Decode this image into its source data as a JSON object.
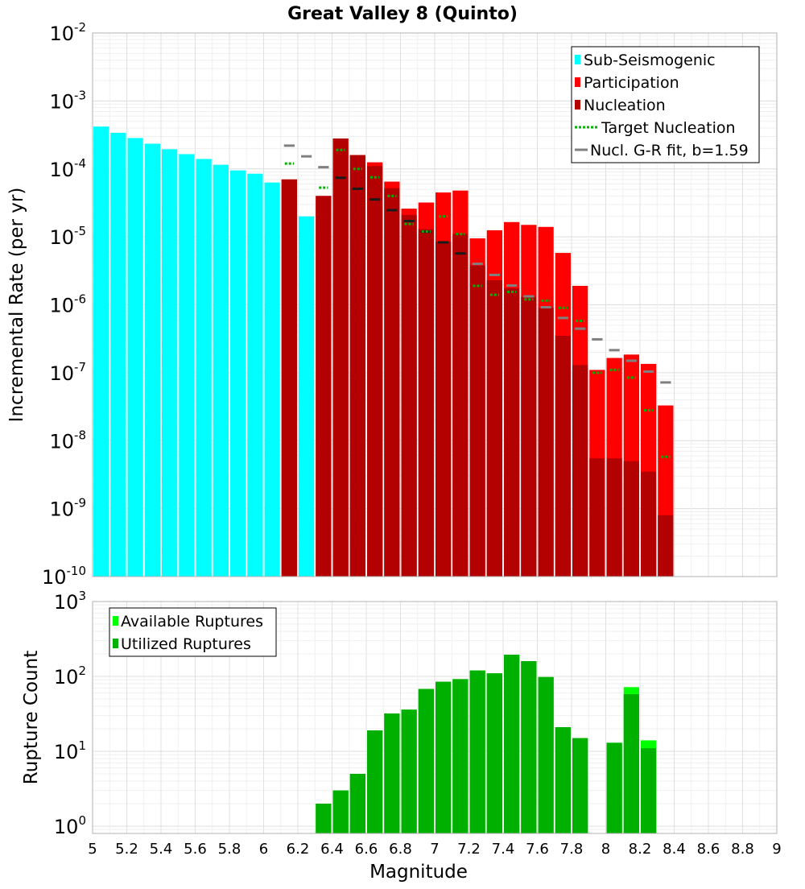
{
  "title": "Great Valley 8 (Quinto)",
  "xlabel": "Magnitude",
  "x_ticks": [
    "5",
    "5.2",
    "5.4",
    "5.6",
    "5.8",
    "6",
    "6.2",
    "6.4",
    "6.6",
    "6.8",
    "7",
    "7.2",
    "7.4",
    "7.6",
    "7.8",
    "8",
    "8.2",
    "8.4",
    "8.6",
    "8.8",
    "9"
  ],
  "colors": {
    "sub_seismogenic": "#00ffff",
    "participation": "#ff0000",
    "nucleation": "#b30000",
    "target_nucleation": "#00b300",
    "gr_fit": "#808080",
    "gr_fit_overlap": "#1a1a1a",
    "available_ruptures": "#00ff00",
    "utilized_ruptures": "#00b000"
  },
  "chart_data": [
    {
      "type": "bar",
      "title": "Great Valley 8 (Quinto)",
      "ylabel": "Incremental Rate (per yr)",
      "xlabel": "",
      "xlim": [
        5,
        9
      ],
      "ylim": [
        1e-10,
        0.01
      ],
      "yscale": "log",
      "bin_width": 0.1,
      "y_ticks": [
        {
          "base": "10",
          "exp": "-10"
        },
        {
          "base": "10",
          "exp": "-9"
        },
        {
          "base": "10",
          "exp": "-8"
        },
        {
          "base": "10",
          "exp": "-7"
        },
        {
          "base": "10",
          "exp": "-6"
        },
        {
          "base": "10",
          "exp": "-5"
        },
        {
          "base": "10",
          "exp": "-4"
        },
        {
          "base": "10",
          "exp": "-3"
        },
        {
          "base": "10",
          "exp": "-2"
        }
      ],
      "grid": true,
      "legend_position": "top-right",
      "legend": [
        "Sub-Seismogenic",
        "Participation",
        "Nucleation",
        "Target Nucleation",
        "Nucl. G-R fit, b=1.59"
      ],
      "sub_seismogenic": {
        "name": "Sub-Seismogenic",
        "x": [
          5.05,
          5.15,
          5.25,
          5.35,
          5.45,
          5.55,
          5.65,
          5.75,
          5.85,
          5.95,
          6.05,
          6.25
        ],
        "values": [
          0.00042,
          0.00034,
          0.000285,
          0.000235,
          0.000195,
          0.000165,
          0.00014,
          0.000115,
          9.5e-05,
          8.5e-05,
          6.3e-05,
          2e-05
        ]
      },
      "participation": {
        "name": "Participation",
        "x": [
          6.15,
          6.35,
          6.45,
          6.55,
          6.65,
          6.75,
          6.85,
          6.95,
          7.05,
          7.15,
          7.25,
          7.35,
          7.45,
          7.55,
          7.65,
          7.75,
          7.85,
          7.95,
          8.05,
          8.15,
          8.25,
          8.35
        ],
        "values": [
          7e-05,
          4e-05,
          0.00028,
          0.00016,
          0.000125,
          6.5e-05,
          2.6e-05,
          3.2e-05,
          4.5e-05,
          4.8e-05,
          9.5e-06,
          1.25e-05,
          1.65e-05,
          1.5e-05,
          1.4e-05,
          5.8e-06,
          1.9e-06,
          1.1e-07,
          1.65e-07,
          1.85e-07,
          1.35e-07,
          3.3e-08
        ]
      },
      "nucleation": {
        "name": "Nucleation",
        "x": [
          6.15,
          6.35,
          6.45,
          6.55,
          6.65,
          6.75,
          6.85,
          6.95,
          7.05,
          7.15,
          7.25,
          7.35,
          7.45,
          7.55,
          7.65,
          7.75,
          7.85,
          7.95,
          8.05,
          8.15,
          8.25,
          8.35
        ],
        "values": [
          7e-05,
          4e-05,
          0.00028,
          0.00016,
          0.00011,
          5.2e-05,
          2.1e-05,
          1.3e-05,
          8.5e-06,
          1.1e-05,
          3.8e-06,
          2.3e-06,
          1.75e-06,
          1.3e-06,
          9e-07,
          3.5e-07,
          1.3e-07,
          5.5e-09,
          5.5e-09,
          5e-09,
          3.5e-09,
          8e-10
        ]
      },
      "target_nucleation": {
        "name": "Target Nucleation",
        "x": [
          6.15,
          6.35,
          6.45,
          6.55,
          6.65,
          6.75,
          6.85,
          6.95,
          7.05,
          7.15,
          7.25,
          7.35,
          7.45,
          7.55,
          7.65,
          7.75,
          7.85,
          7.95,
          8.05,
          8.15,
          8.25,
          8.35
        ],
        "values": [
          0.00012,
          5.3e-05,
          0.00019,
          0.0001,
          7.5e-05,
          4e-05,
          1.55e-05,
          1.2e-05,
          2e-05,
          1.1e-05,
          1.9e-06,
          1.4e-06,
          1.55e-06,
          1.2e-06,
          1.15e-06,
          9e-07,
          5.8e-07,
          1e-07,
          1.1e-07,
          8.5e-08,
          2.8e-08,
          5.8e-09
        ]
      },
      "gr_fit": {
        "name": "Nucl. G-R fit, b=1.59",
        "b": 1.59,
        "x": [
          6.15,
          6.25,
          6.35,
          6.45,
          6.55,
          6.65,
          6.75,
          6.85,
          6.95,
          7.05,
          7.15,
          7.25,
          7.35,
          7.45,
          7.55,
          7.65,
          7.75,
          7.85,
          7.95,
          8.05,
          8.15,
          8.25,
          8.35
        ],
        "values": [
          0.00022,
          0.000153,
          0.000106,
          7.4e-05,
          5.1e-05,
          3.55e-05,
          2.47e-05,
          1.71e-05,
          1.19e-05,
          8.3e-06,
          5.7e-06,
          4e-06,
          2.75e-06,
          1.92e-06,
          1.33e-06,
          9.2e-07,
          6.4e-07,
          4.45e-07,
          3.1e-07,
          2.15e-07,
          1.5e-07,
          1.04e-07,
          7.2e-08
        ]
      }
    },
    {
      "type": "bar",
      "title": "",
      "ylabel": "Rupture Count",
      "xlabel": "Magnitude",
      "xlim": [
        5,
        9
      ],
      "ylim": [
        0.8,
        1000
      ],
      "yscale": "log",
      "bin_width": 0.1,
      "y_ticks": [
        {
          "base": "10",
          "exp": "0"
        },
        {
          "base": "10",
          "exp": "1"
        },
        {
          "base": "10",
          "exp": "2"
        },
        {
          "base": "10",
          "exp": "3"
        }
      ],
      "grid": true,
      "legend_position": "top-left",
      "legend": [
        "Available Ruptures",
        "Utilized Ruptures"
      ],
      "available_ruptures": {
        "name": "Available Ruptures",
        "x": [
          6.35,
          6.45,
          6.55,
          6.65,
          6.75,
          6.85,
          6.95,
          7.05,
          7.15,
          7.25,
          7.35,
          7.45,
          7.55,
          7.65,
          7.75,
          7.85,
          8.05,
          8.15,
          8.25
        ],
        "values": [
          2,
          3,
          5,
          19,
          32,
          36,
          68,
          85,
          92,
          120,
          110,
          195,
          160,
          98,
          21,
          15,
          13,
          72,
          14
        ]
      },
      "utilized_ruptures": {
        "name": "Utilized Ruptures",
        "x": [
          6.35,
          6.45,
          6.55,
          6.65,
          6.75,
          6.85,
          6.95,
          7.05,
          7.15,
          7.25,
          7.35,
          7.45,
          7.55,
          7.65,
          7.75,
          7.85,
          8.05,
          8.15,
          8.25
        ],
        "values": [
          2,
          3,
          5,
          19,
          32,
          36,
          68,
          85,
          92,
          120,
          110,
          195,
          160,
          98,
          21,
          15,
          13,
          58,
          11
        ]
      }
    }
  ]
}
